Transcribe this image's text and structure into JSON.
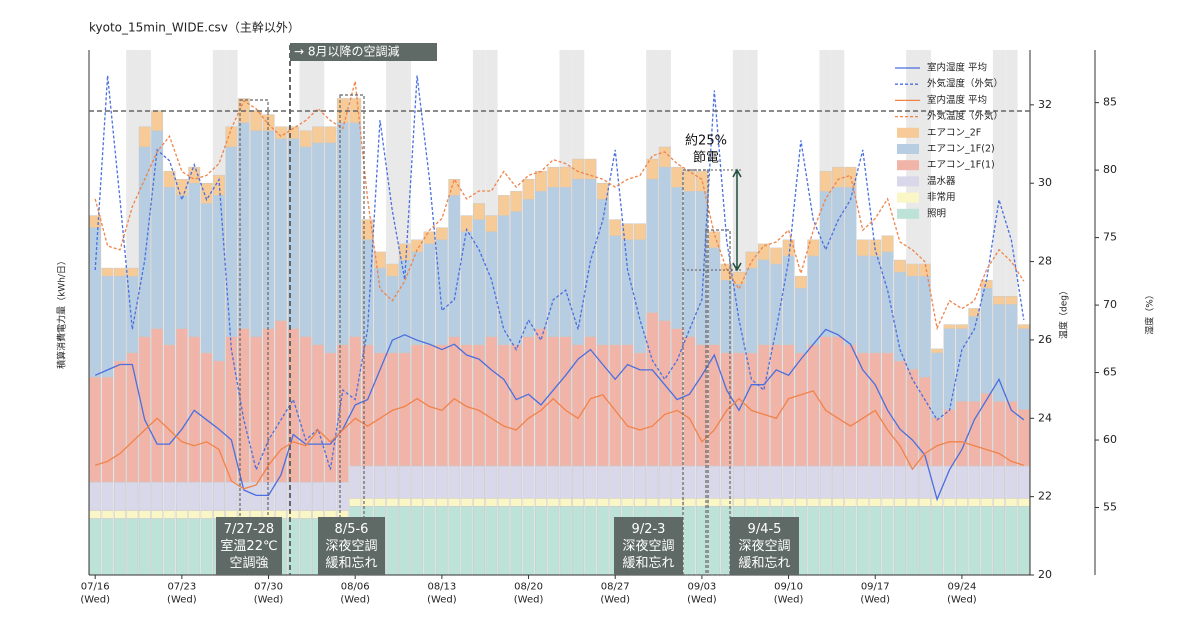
{
  "chart_data": {
    "type": "bar",
    "stacked": true,
    "title": "kyoto_15min_WIDE.csv（主幹以外）",
    "y_label": "積算消費電力量（kWh/日）",
    "y2_label": "温度（deg）",
    "y3_label": "湿度（%）",
    "ylim": [
      0,
      130
    ],
    "y2lim": [
      20,
      33.4
    ],
    "y2ticks": [
      20,
      22,
      24,
      26,
      28,
      30,
      32
    ],
    "y3lim": [
      50,
      88.9
    ],
    "y3ticks": [
      55,
      60,
      65,
      70,
      75,
      80,
      85
    ],
    "categories": [
      "07/16\n(Wed)",
      null,
      null,
      null,
      null,
      null,
      null,
      "07/23\n(Wed)",
      null,
      null,
      null,
      null,
      null,
      null,
      "07/30\n(Wed)",
      null,
      null,
      null,
      null,
      null,
      null,
      "08/06\n(Wed)",
      null,
      null,
      null,
      null,
      null,
      null,
      "08/13\n(Wed)",
      null,
      null,
      null,
      null,
      null,
      null,
      "08/20\n(Wed)",
      null,
      null,
      null,
      null,
      null,
      null,
      "08/27\n(Wed)",
      null,
      null,
      null,
      null,
      null,
      null,
      "09/03\n(Wed)",
      null,
      null,
      null,
      null,
      null,
      null,
      "09/10\n(Wed)",
      null,
      null,
      null,
      null,
      null,
      null,
      "09/17\n(Wed)",
      null,
      null,
      null,
      null,
      null,
      null,
      "09/24\n(Wed)",
      null,
      null,
      null,
      null,
      null
    ],
    "series": [
      {
        "name": "室内湿度 平均",
        "type": "line",
        "axis": "y3",
        "dash": false,
        "color": "#4a6fe0",
        "values": [
          64.8,
          65.2,
          65.6,
          65.6,
          61.5,
          59.7,
          59.7,
          60.8,
          62.2,
          61.5,
          60.8,
          60.0,
          56.3,
          55.9,
          55.9,
          57.4,
          60.4,
          59.7,
          59.7,
          59.7,
          60.8,
          62.6,
          63.0,
          65.2,
          67.4,
          67.8,
          67.4,
          67.1,
          66.7,
          67.1,
          66.3,
          66.0,
          65.2,
          64.5,
          63.0,
          63.4,
          62.6,
          63.7,
          64.8,
          66.0,
          66.7,
          65.6,
          64.5,
          65.6,
          65.2,
          65.2,
          64.1,
          63.0,
          63.4,
          64.8,
          66.3,
          63.7,
          62.2,
          64.1,
          64.1,
          65.2,
          64.8,
          66.0,
          67.1,
          68.2,
          67.8,
          67.1,
          65.2,
          64.1,
          62.2,
          60.8,
          60.0,
          58.9,
          55.6,
          57.8,
          59.3,
          61.5,
          63.0,
          64.5,
          62.2,
          61.5
        ]
      },
      {
        "name": "外気湿度（外気）",
        "type": "line",
        "axis": "y3",
        "dash": true,
        "color": "#4a6fe0",
        "values": [
          72.6,
          87.0,
          77.8,
          68.2,
          73.3,
          81.5,
          80.7,
          77.8,
          80.4,
          77.8,
          79.3,
          66.7,
          61.5,
          57.8,
          60.0,
          61.5,
          63.0,
          60.0,
          60.8,
          57.8,
          63.7,
          63.0,
          68.2,
          83.7,
          77.0,
          71.9,
          87.0,
          79.3,
          69.6,
          70.4,
          75.6,
          74.1,
          71.9,
          68.2,
          66.7,
          68.9,
          67.4,
          70.4,
          71.1,
          68.2,
          73.3,
          76.3,
          81.5,
          72.6,
          68.9,
          65.9,
          64.5,
          65.9,
          68.2,
          70.4,
          85.9,
          74.8,
          68.9,
          64.5,
          63.7,
          68.2,
          73.3,
          82.2,
          76.3,
          74.1,
          76.3,
          77.8,
          81.5,
          74.1,
          71.1,
          66.7,
          64.5,
          63.0,
          61.5,
          62.2,
          66.7,
          68.2,
          71.9,
          77.8,
          74.8,
          68.9
        ]
      },
      {
        "name": "室内温度 平均",
        "type": "line",
        "axis": "y2",
        "dash": false,
        "color": "#f0834a",
        "values": [
          22.8,
          22.9,
          23.1,
          23.4,
          23.7,
          24.0,
          23.7,
          23.4,
          23.3,
          23.4,
          23.2,
          22.4,
          22.2,
          22.3,
          22.8,
          23.2,
          23.4,
          23.3,
          23.7,
          23.4,
          23.7,
          24.0,
          23.8,
          24.0,
          24.2,
          24.3,
          24.5,
          24.3,
          24.2,
          24.5,
          24.3,
          24.2,
          24.0,
          23.8,
          23.7,
          24.0,
          24.2,
          24.5,
          24.2,
          24.0,
          24.5,
          24.6,
          24.2,
          23.8,
          23.7,
          23.8,
          24.1,
          24.2,
          24.0,
          23.4,
          23.7,
          24.2,
          24.5,
          24.2,
          24.1,
          24.0,
          24.5,
          24.6,
          24.7,
          24.2,
          24.0,
          23.8,
          24.0,
          24.2,
          23.7,
          23.3,
          22.7,
          23.1,
          23.3,
          23.4,
          23.4,
          23.3,
          23.2,
          23.1,
          22.9,
          22.8
        ]
      },
      {
        "name": "外気温度（外気）",
        "type": "line",
        "axis": "y2",
        "dash": true,
        "color": "#f0834a",
        "values": [
          29.6,
          28.4,
          28.3,
          29.4,
          30.1,
          30.8,
          31.2,
          30.3,
          30.1,
          30.2,
          30.5,
          31.4,
          32.1,
          31.9,
          31.5,
          31.2,
          31.4,
          31.6,
          31.9,
          31.6,
          31.4,
          32.6,
          29.6,
          27.3,
          27.0,
          27.5,
          28.3,
          28.8,
          29.1,
          30.1,
          29.6,
          29.8,
          29.8,
          30.3,
          29.9,
          30.2,
          30.3,
          30.6,
          30.5,
          30.3,
          30.2,
          30.1,
          29.9,
          30.1,
          30.2,
          30.7,
          30.8,
          30.5,
          30.3,
          30.1,
          28.7,
          27.8,
          27.3,
          28.0,
          28.4,
          28.5,
          28.8,
          27.7,
          28.8,
          29.6,
          30.1,
          30.2,
          28.8,
          29.1,
          29.6,
          28.5,
          28.3,
          28.0,
          26.3,
          27.0,
          26.8,
          27.0,
          27.8,
          28.3,
          28.0,
          27.5
        ]
      },
      {
        "name": "エアコン_2F",
        "type": "bar",
        "color": "#f6cb97",
        "values": [
          3,
          2,
          2,
          2,
          5,
          5,
          4,
          4,
          4,
          5,
          5,
          5,
          6,
          5,
          4,
          3,
          3,
          4,
          4,
          4,
          6,
          6,
          5,
          4,
          3,
          4,
          3,
          3,
          3,
          4,
          4,
          4,
          4,
          5,
          5,
          5,
          5,
          5,
          5,
          5,
          5,
          4,
          4,
          4,
          4,
          5,
          5,
          5,
          5,
          5,
          4,
          4,
          3,
          4,
          4,
          4,
          4,
          3,
          4,
          5,
          5,
          5,
          4,
          4,
          4,
          3,
          3,
          3,
          1,
          1,
          1,
          2,
          2,
          2,
          2,
          1
        ]
      },
      {
        "name": "エアコン_1F(2)",
        "type": "bar",
        "color": "#b6cde2",
        "values": [
          37,
          25,
          21,
          19,
          47,
          49,
          39,
          33,
          38,
          37,
          41,
          47,
          51,
          51,
          49,
          45,
          47,
          47,
          50,
          52,
          55,
          53,
          26,
          21,
          19,
          23,
          23,
          25,
          26,
          35,
          28,
          31,
          26,
          32,
          33,
          34,
          34,
          37,
          37,
          41,
          39,
          36,
          27,
          26,
          28,
          33,
          38,
          35,
          36,
          38,
          24,
          18,
          17,
          21,
          21,
          20,
          22,
          16,
          22,
          36,
          37,
          39,
          24,
          24,
          25,
          22,
          23,
          25,
          16,
          20,
          18,
          21,
          26,
          24,
          24,
          20
        ]
      },
      {
        "name": "エアコン_1F(1)",
        "type": "bar",
        "color": "#f1b4a8",
        "values": [
          26,
          26,
          30,
          32,
          36,
          38,
          34,
          38,
          36,
          32,
          30,
          36,
          38,
          36,
          38,
          40,
          38,
          36,
          34,
          32,
          34,
          32,
          30,
          28,
          28,
          28,
          30,
          30,
          30,
          32,
          30,
          30,
          32,
          30,
          30,
          32,
          34,
          32,
          32,
          30,
          32,
          30,
          30,
          30,
          28,
          38,
          36,
          34,
          32,
          30,
          30,
          28,
          28,
          28,
          30,
          30,
          30,
          28,
          30,
          32,
          32,
          30,
          28,
          28,
          28,
          26,
          24,
          22,
          12,
          14,
          16,
          16,
          18,
          16,
          16,
          14
        ]
      },
      {
        "name": "温水器",
        "type": "bar",
        "color": "#d9d7ea",
        "values": [
          7,
          7,
          7,
          7,
          7,
          7,
          7,
          7,
          7,
          7,
          7,
          7,
          7,
          7,
          7,
          7,
          7,
          7,
          7,
          7,
          7,
          8,
          8,
          8,
          8,
          8,
          8,
          8,
          8,
          8,
          8,
          8,
          8,
          8,
          8,
          8,
          8,
          8,
          8,
          8,
          8,
          8,
          8,
          8,
          8,
          8,
          8,
          8,
          8,
          8,
          8,
          8,
          8,
          8,
          8,
          8,
          8,
          8,
          8,
          8,
          8,
          8,
          8,
          8,
          8,
          8,
          8,
          8,
          8,
          8,
          8,
          8,
          8,
          8,
          8,
          8
        ]
      },
      {
        "name": "非常用",
        "type": "bar",
        "color": "#fbf6c6",
        "values": [
          2,
          2,
          2,
          2,
          2,
          2,
          2,
          2,
          2,
          2,
          2,
          2,
          2,
          2,
          2,
          2,
          2,
          2,
          2,
          2,
          2,
          2,
          2,
          2,
          2,
          2,
          2,
          2,
          2,
          2,
          2,
          2,
          2,
          2,
          2,
          2,
          2,
          2,
          2,
          2,
          2,
          2,
          2,
          2,
          2,
          2,
          2,
          2,
          2,
          2,
          2,
          2,
          2,
          2,
          2,
          2,
          2,
          2,
          2,
          2,
          2,
          2,
          2,
          2,
          2,
          2,
          2,
          2,
          2,
          2,
          2,
          2,
          2,
          2,
          2,
          2
        ]
      },
      {
        "name": "照明",
        "type": "bar",
        "color": "#bde2d8",
        "values": [
          14,
          14,
          14,
          14,
          14,
          14,
          14,
          14,
          14,
          14,
          14,
          14,
          14,
          14,
          14,
          14,
          14,
          14,
          14,
          14,
          14,
          17,
          17,
          17,
          17,
          17,
          17,
          17,
          17,
          17,
          17,
          17,
          17,
          17,
          17,
          17,
          17,
          17,
          17,
          17,
          17,
          17,
          17,
          17,
          17,
          17,
          17,
          17,
          17,
          17,
          17,
          17,
          17,
          17,
          17,
          17,
          17,
          17,
          17,
          17,
          17,
          17,
          17,
          17,
          17,
          17,
          17,
          17,
          17,
          17,
          17,
          17,
          17,
          17,
          17,
          17
        ]
      }
    ],
    "annotations": [
      "→ 8月以降の空調減",
      "7/27-28\n室温22℃\n空調強",
      "8/5-6\n深夜空調\n緩和忘れ",
      "9/2-3\n深夜空調\n緩和忘れ",
      "9/4-5\n深夜空調\n緩和忘れ",
      "約25%\n節電"
    ]
  }
}
